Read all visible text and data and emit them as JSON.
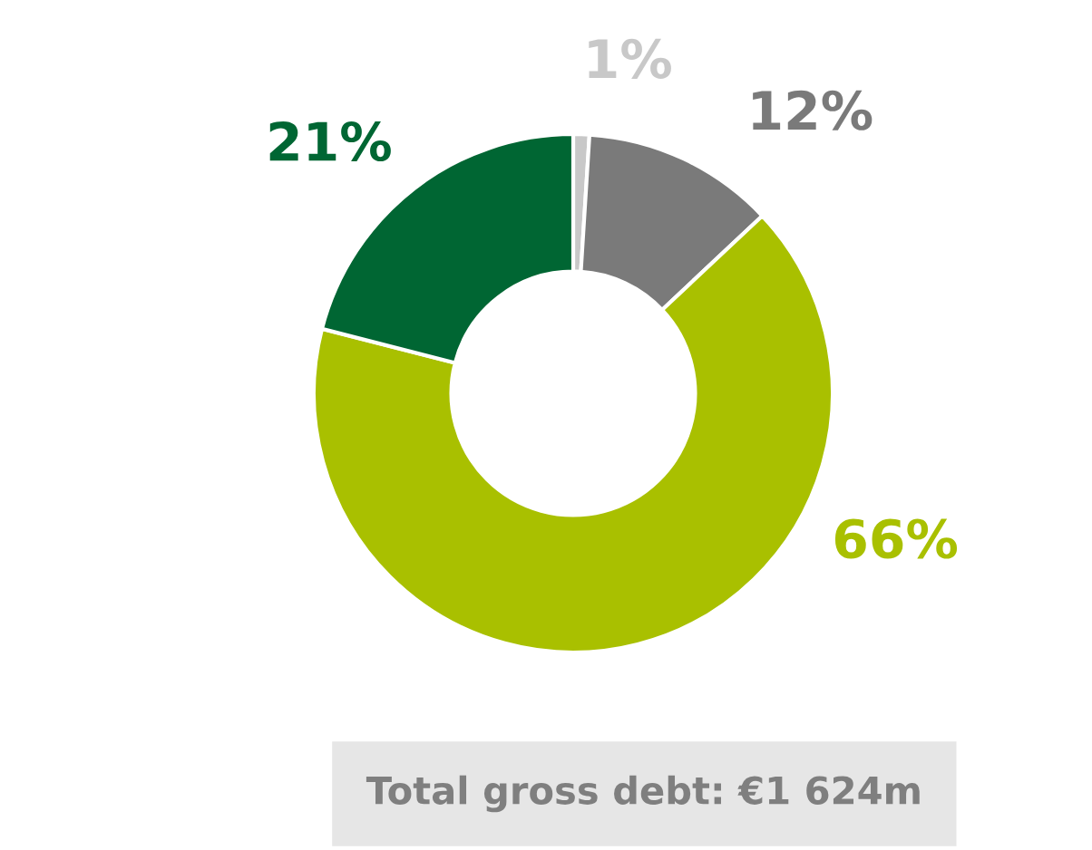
{
  "chart_data": {
    "type": "donut",
    "categories": [
      null,
      null,
      null,
      null
    ],
    "values": [
      1,
      12,
      66,
      21
    ],
    "colors": [
      "#c8c8c8",
      "#7a7a7a",
      "#a9c000",
      "#006633"
    ],
    "value_labels": [
      "1%",
      "12%",
      "66%",
      "21%"
    ],
    "annotations": [
      "Total gross debt: €1 624m"
    ]
  }
}
